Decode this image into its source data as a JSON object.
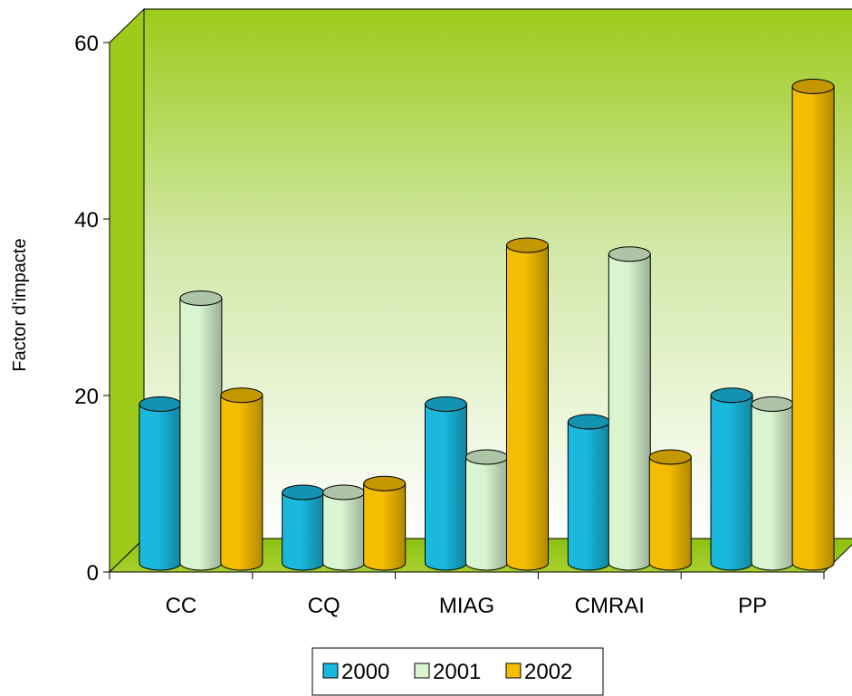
{
  "chart_data": {
    "type": "bar",
    "title": "",
    "xlabel": "",
    "ylabel": "Factor d'impacte",
    "ylim": [
      0,
      60
    ],
    "yticks": [
      0,
      20,
      40,
      60
    ],
    "categories": [
      "CC",
      "CQ",
      "MIAG",
      "CMRAI",
      "PP"
    ],
    "series": [
      {
        "name": "2000",
        "values": [
          18,
          8,
          18,
          16,
          19
        ],
        "color": "#19b8dc"
      },
      {
        "name": "2001",
        "values": [
          30,
          8,
          12,
          35,
          18
        ],
        "color": "#d8f5d0"
      },
      {
        "name": "2002",
        "values": [
          19,
          9,
          36,
          12,
          54
        ],
        "color": "#f5bd00"
      }
    ],
    "grid": false,
    "legend_position": "bottom",
    "style": "3d-cylinder",
    "background_gradient": [
      "#9ccb1a",
      "#ffffff"
    ]
  }
}
